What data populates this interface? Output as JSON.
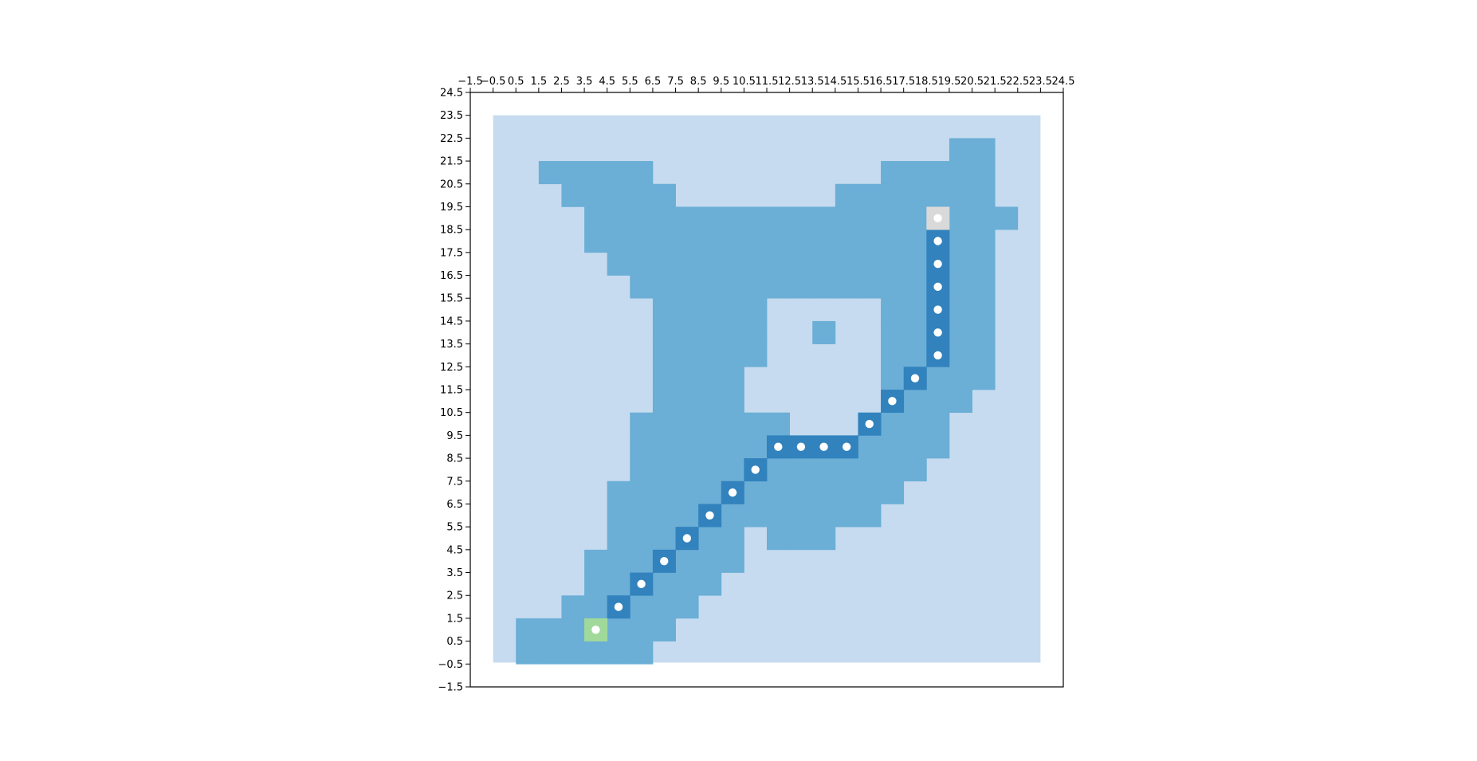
{
  "chart_data": {
    "type": "heatmap",
    "title": "",
    "xlabel": "",
    "ylabel": "",
    "xlim": [
      -1.5,
      24.5
    ],
    "ylim": [
      -1.5,
      24.5
    ],
    "xticks": [
      "−1.5",
      "−0.5",
      "0.5",
      "1.5",
      "2.5",
      "3.5",
      "4.5",
      "5.5",
      "6.5",
      "7.5",
      "8.5",
      "9.5",
      "10.5",
      "11.5",
      "12.5",
      "13.5",
      "14.5",
      "15.5",
      "16.5",
      "17.5",
      "18.5",
      "19.5",
      "20.5",
      "21.5",
      "22.5",
      "23.5",
      "24.5"
    ],
    "yticks": [
      "−1.5",
      "−0.5",
      "0.5",
      "1.5",
      "2.5",
      "3.5",
      "4.5",
      "5.5",
      "6.5",
      "7.5",
      "8.5",
      "9.5",
      "10.5",
      "11.5",
      "12.5",
      "13.5",
      "14.5",
      "15.5",
      "16.5",
      "17.5",
      "18.5",
      "19.5",
      "20.5",
      "21.5",
      "22.5",
      "23.5",
      "24.5"
    ],
    "grid_extent": {
      "cols": 24,
      "rows": 24
    },
    "colors": {
      "background": "#c6dbef",
      "traversable": "#6baed6",
      "path": "#3182bd",
      "start": "#a1d99b",
      "goal": "#d9d9d9",
      "marker": "#ffffff"
    },
    "traversable_rows": [
      {
        "y": 22,
        "x": [
          [
            20,
            21
          ]
        ]
      },
      {
        "y": 21,
        "x": [
          [
            2,
            6
          ],
          [
            17,
            21
          ]
        ]
      },
      {
        "y": 20,
        "x": [
          [
            3,
            7
          ],
          [
            15,
            21
          ]
        ]
      },
      {
        "y": 19,
        "x": [
          [
            4,
            22
          ]
        ]
      },
      {
        "y": 18,
        "x": [
          [
            4,
            21
          ]
        ]
      },
      {
        "y": 17,
        "x": [
          [
            5,
            21
          ]
        ]
      },
      {
        "y": 16,
        "x": [
          [
            6,
            21
          ]
        ]
      },
      {
        "y": 15,
        "x": [
          [
            7,
            11
          ],
          [
            17,
            21
          ]
        ]
      },
      {
        "y": 14,
        "x": [
          [
            7,
            11
          ],
          [
            14,
            14
          ],
          [
            17,
            21
          ]
        ]
      },
      {
        "y": 13,
        "x": [
          [
            7,
            11
          ],
          [
            17,
            21
          ]
        ]
      },
      {
        "y": 12,
        "x": [
          [
            7,
            10
          ],
          [
            17,
            21
          ]
        ]
      },
      {
        "y": 11,
        "x": [
          [
            7,
            10
          ],
          [
            17,
            20
          ]
        ]
      },
      {
        "y": 10,
        "x": [
          [
            6,
            12
          ],
          [
            17,
            19
          ]
        ]
      },
      {
        "y": 9,
        "x": [
          [
            6,
            12
          ],
          [
            16,
            19
          ]
        ]
      },
      {
        "y": 8,
        "x": [
          [
            6,
            18
          ]
        ]
      },
      {
        "y": 7,
        "x": [
          [
            5,
            17
          ]
        ]
      },
      {
        "y": 6,
        "x": [
          [
            5,
            16
          ]
        ]
      },
      {
        "y": 5,
        "x": [
          [
            5,
            10
          ],
          [
            12,
            14
          ]
        ]
      },
      {
        "y": 4,
        "x": [
          [
            4,
            10
          ]
        ]
      },
      {
        "y": 3,
        "x": [
          [
            4,
            9
          ]
        ]
      },
      {
        "y": 2,
        "x": [
          [
            3,
            8
          ]
        ]
      },
      {
        "y": 1,
        "x": [
          [
            1,
            7
          ]
        ]
      },
      {
        "y": 0,
        "x": [
          [
            1,
            6
          ]
        ]
      }
    ],
    "start": {
      "x": 4,
      "y": 1
    },
    "goal": {
      "x": 19,
      "y": 19
    },
    "path": [
      {
        "x": 5,
        "y": 2
      },
      {
        "x": 6,
        "y": 3
      },
      {
        "x": 7,
        "y": 4
      },
      {
        "x": 8,
        "y": 5
      },
      {
        "x": 9,
        "y": 6
      },
      {
        "x": 10,
        "y": 7
      },
      {
        "x": 11,
        "y": 8
      },
      {
        "x": 12,
        "y": 9
      },
      {
        "x": 13,
        "y": 9
      },
      {
        "x": 14,
        "y": 9
      },
      {
        "x": 15,
        "y": 9
      },
      {
        "x": 16,
        "y": 10
      },
      {
        "x": 17,
        "y": 11
      },
      {
        "x": 18,
        "y": 12
      },
      {
        "x": 19,
        "y": 13
      },
      {
        "x": 19,
        "y": 14
      },
      {
        "x": 19,
        "y": 15
      },
      {
        "x": 19,
        "y": 16
      },
      {
        "x": 19,
        "y": 17
      },
      {
        "x": 19,
        "y": 18
      }
    ]
  }
}
